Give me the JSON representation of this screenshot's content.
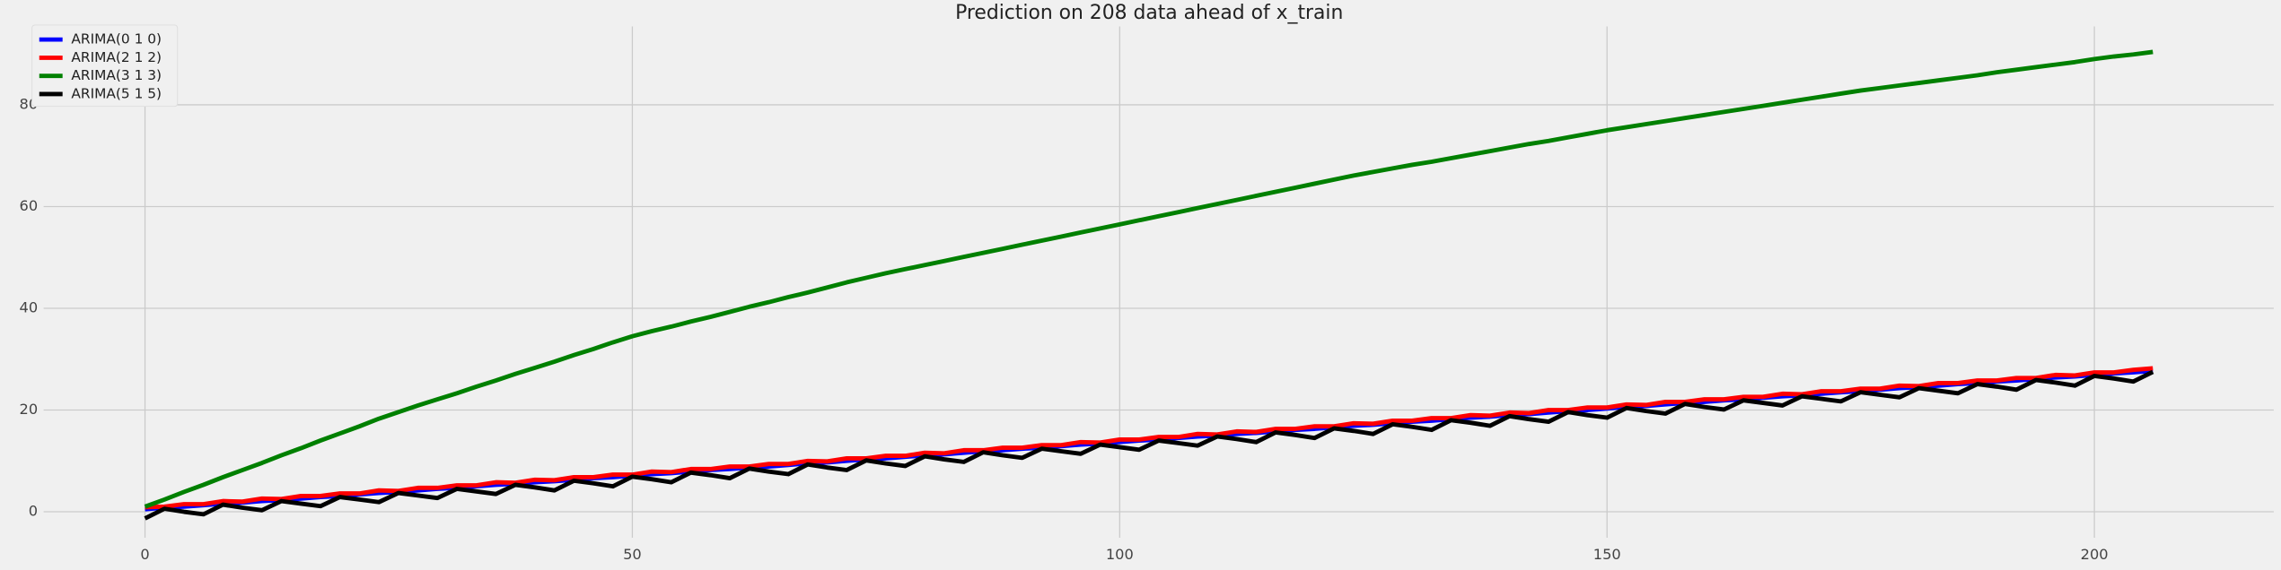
{
  "chart_data": {
    "type": "line",
    "title": "Prediction on 208 data ahead of x_train",
    "x": [
      0,
      2,
      4,
      6,
      8,
      10,
      12,
      14,
      16,
      18,
      20,
      22,
      24,
      26,
      28,
      30,
      32,
      34,
      36,
      38,
      40,
      42,
      44,
      46,
      48,
      50,
      52,
      54,
      56,
      58,
      60,
      62,
      64,
      66,
      68,
      70,
      72,
      74,
      76,
      78,
      80,
      82,
      84,
      86,
      88,
      90,
      92,
      94,
      96,
      98,
      100,
      102,
      104,
      106,
      108,
      110,
      112,
      114,
      116,
      118,
      120,
      122,
      124,
      126,
      128,
      130,
      132,
      134,
      136,
      138,
      140,
      142,
      144,
      146,
      148,
      150,
      152,
      154,
      156,
      158,
      160,
      162,
      164,
      166,
      168,
      170,
      172,
      174,
      176,
      178,
      180,
      182,
      184,
      186,
      188,
      190,
      192,
      194,
      196,
      198,
      200,
      202,
      204,
      206
    ],
    "series": [
      {
        "name": "ARIMA(0 1 0)",
        "color": "#0000ff",
        "values": [
          0.5,
          0.8,
          1.0,
          1.3,
          1.6,
          1.8,
          2.1,
          2.3,
          2.6,
          2.9,
          3.1,
          3.4,
          3.7,
          3.9,
          4.2,
          4.5,
          4.7,
          5.0,
          5.3,
          5.5,
          5.8,
          6.0,
          6.3,
          6.6,
          6.8,
          7.1,
          7.4,
          7.6,
          7.9,
          8.2,
          8.4,
          8.7,
          8.9,
          9.2,
          9.5,
          9.7,
          10.0,
          10.3,
          10.5,
          10.8,
          11.1,
          11.3,
          11.6,
          11.9,
          12.1,
          12.4,
          12.6,
          12.9,
          13.2,
          13.4,
          13.7,
          14.0,
          14.2,
          14.5,
          14.8,
          15.0,
          15.3,
          15.5,
          15.8,
          16.1,
          16.3,
          16.6,
          16.9,
          17.1,
          17.4,
          17.7,
          17.9,
          18.2,
          18.5,
          18.7,
          19.0,
          19.2,
          19.5,
          19.8,
          20.0,
          20.3,
          20.6,
          20.8,
          21.1,
          21.4,
          21.6,
          21.9,
          22.1,
          22.4,
          22.7,
          22.9,
          23.2,
          23.5,
          23.7,
          24.0,
          24.3,
          24.5,
          24.8,
          25.1,
          25.3,
          25.6,
          25.8,
          26.1,
          26.4,
          26.6,
          26.9,
          27.2,
          27.4,
          27.7
        ]
      },
      {
        "name": "ARIMA(2 1 2)",
        "color": "#ff0000",
        "values": [
          0.9,
          1.0,
          1.5,
          1.5,
          2.1,
          2.0,
          2.6,
          2.5,
          3.1,
          3.1,
          3.6,
          3.6,
          4.2,
          4.1,
          4.7,
          4.7,
          5.2,
          5.2,
          5.8,
          5.7,
          6.3,
          6.2,
          6.8,
          6.8,
          7.3,
          7.3,
          7.9,
          7.8,
          8.4,
          8.4,
          8.9,
          8.9,
          9.4,
          9.4,
          10.0,
          9.9,
          10.5,
          10.5,
          11.0,
          11.0,
          11.6,
          11.5,
          12.1,
          12.1,
          12.6,
          12.6,
          13.1,
          13.1,
          13.7,
          13.6,
          14.2,
          14.2,
          14.7,
          14.7,
          15.3,
          15.2,
          15.8,
          15.7,
          16.3,
          16.3,
          16.8,
          16.8,
          17.4,
          17.3,
          17.9,
          17.9,
          18.4,
          18.4,
          19.0,
          18.9,
          19.5,
          19.4,
          20.0,
          20.0,
          20.5,
          20.5,
          21.1,
          21.0,
          21.6,
          21.6,
          22.1,
          22.1,
          22.6,
          22.6,
          23.2,
          23.1,
          23.7,
          23.7,
          24.2,
          24.2,
          24.8,
          24.7,
          25.3,
          25.3,
          25.8,
          25.8,
          26.3,
          26.3,
          26.9,
          26.8,
          27.4,
          27.4,
          27.9,
          28.2
        ]
      },
      {
        "name": "ARIMA(3 1 3)",
        "color": "#008000",
        "values": [
          1.0,
          2.4,
          3.9,
          5.3,
          6.8,
          8.2,
          9.6,
          11.1,
          12.5,
          14.0,
          15.4,
          16.8,
          18.3,
          19.6,
          20.9,
          22.1,
          23.3,
          24.6,
          25.8,
          27.1,
          28.3,
          29.5,
          30.8,
          32.0,
          33.3,
          34.5,
          35.5,
          36.4,
          37.4,
          38.3,
          39.3,
          40.3,
          41.2,
          42.2,
          43.1,
          44.1,
          45.1,
          46.0,
          46.9,
          47.7,
          48.5,
          49.3,
          50.1,
          50.9,
          51.7,
          52.5,
          53.3,
          54.1,
          54.9,
          55.7,
          56.5,
          57.3,
          58.1,
          58.9,
          59.7,
          60.5,
          61.3,
          62.1,
          62.9,
          63.7,
          64.5,
          65.3,
          66.1,
          66.8,
          67.5,
          68.2,
          68.8,
          69.5,
          70.2,
          70.9,
          71.6,
          72.3,
          72.9,
          73.6,
          74.3,
          75.0,
          75.6,
          76.2,
          76.8,
          77.4,
          78.0,
          78.6,
          79.2,
          79.8,
          80.4,
          81.0,
          81.6,
          82.2,
          82.8,
          83.3,
          83.8,
          84.3,
          84.8,
          85.3,
          85.8,
          86.4,
          86.9,
          87.4,
          87.9,
          88.4,
          89.0,
          89.5,
          89.9,
          90.4
        ]
      },
      {
        "name": "ARIMA(5 1 5)",
        "color": "#000000",
        "values": [
          -1.3,
          0.6,
          0.0,
          -0.5,
          1.4,
          0.8,
          0.3,
          2.1,
          1.6,
          1.1,
          2.9,
          2.4,
          1.9,
          3.7,
          3.2,
          2.7,
          4.5,
          4.0,
          3.5,
          5.3,
          4.8,
          4.2,
          6.1,
          5.6,
          5.0,
          6.9,
          6.4,
          5.8,
          7.7,
          7.2,
          6.6,
          8.5,
          7.9,
          7.4,
          9.3,
          8.7,
          8.2,
          10.1,
          9.5,
          9.0,
          10.9,
          10.3,
          9.8,
          11.7,
          11.1,
          10.6,
          12.4,
          11.9,
          11.4,
          13.2,
          12.7,
          12.2,
          14.0,
          13.5,
          13.0,
          14.8,
          14.3,
          13.7,
          15.6,
          15.1,
          14.5,
          16.4,
          15.9,
          15.3,
          17.2,
          16.7,
          16.1,
          18.0,
          17.5,
          16.9,
          18.8,
          18.2,
          17.7,
          19.6,
          19.0,
          18.5,
          20.4,
          19.8,
          19.3,
          21.2,
          20.6,
          20.1,
          21.9,
          21.4,
          20.9,
          22.7,
          22.2,
          21.7,
          23.5,
          23.0,
          22.5,
          24.3,
          23.8,
          23.3,
          25.1,
          24.6,
          24.0,
          25.9,
          25.4,
          24.8,
          26.7,
          26.2,
          25.6,
          27.5
        ]
      }
    ],
    "xlim": [
      -10.4,
      218.4
    ],
    "ylim": [
      -5.1,
      95.4
    ],
    "xticks": [
      0,
      50,
      100,
      150,
      200
    ],
    "yticks": [
      0,
      20,
      40,
      60,
      80
    ],
    "grid": true,
    "legend": "upper left"
  }
}
